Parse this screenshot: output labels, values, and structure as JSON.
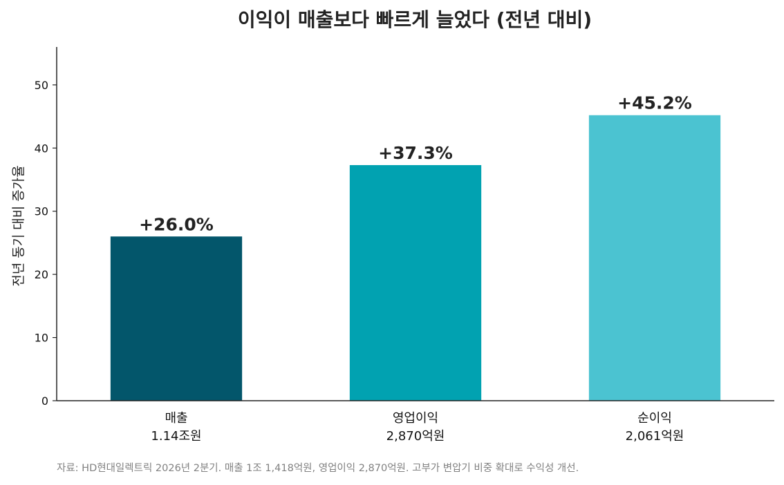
{
  "chart_data": {
    "type": "bar",
    "title": "이익이 매출보다 빠르게 늘었다 (전년 대비)",
    "ylabel": "전년 동기 대비 증가율",
    "xlabel": "",
    "ylim": [
      0,
      56
    ],
    "yticks": [
      0,
      10,
      20,
      30,
      40,
      50
    ],
    "grid": false,
    "categories": [
      {
        "name": "매출",
        "sub": "1.14조원"
      },
      {
        "name": "영업이익",
        "sub": "2,870억원"
      },
      {
        "name": "순이익",
        "sub": "2,061억원"
      }
    ],
    "values": [
      26.0,
      37.3,
      45.2
    ],
    "value_labels": [
      "+26.0%",
      "+37.3%",
      "+45.2%"
    ],
    "colors": [
      "#03566b",
      "#01a2b1",
      "#4bc3d1"
    ]
  },
  "source_note": "자료: HD현대일렉트릭 2026년 2분기. 매출 1조 1,418억원, 영업이익 2,870억원. 고부가 변압기 비중 확대로 수익성 개선."
}
